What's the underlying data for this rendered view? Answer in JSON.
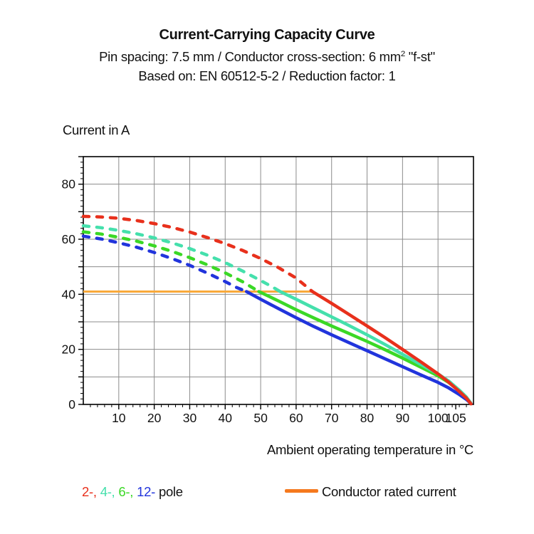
{
  "header": {
    "title": "Current-Carrying Capacity Curve",
    "subtitle_pre": "Pin spacing: 7.5 mm / Conductor cross-section: 6 mm",
    "subtitle_sup": "2",
    "subtitle_post": " \"f-st\"",
    "subtitle2": "Based on: EN 60512-5-2 / Reduction factor: 1"
  },
  "legend": {
    "poles": [
      {
        "text": "2-,",
        "color": "#E8301C"
      },
      {
        "text": "4-,",
        "color": "#45E0AC"
      },
      {
        "text": "6-,",
        "color": "#3BD826"
      },
      {
        "text": "12-",
        "color": "#2134DC"
      }
    ],
    "poles_suffix": "pole",
    "rated_label": "Conductor rated current",
    "rated_swatch_color": "#F5791E"
  },
  "chart_data": {
    "type": "line",
    "title": "Current-Carrying Capacity Curve",
    "xlabel": "Ambient operating temperature in °C",
    "ylabel": "Current in A",
    "xlim": [
      0,
      110
    ],
    "ylim": [
      0,
      90
    ],
    "grid": true,
    "grid_color": "#8C8C8C",
    "x_gridlines": [
      10,
      20,
      30,
      40,
      50,
      60,
      70,
      80,
      90,
      100
    ],
    "y_gridlines": [
      10,
      20,
      30,
      40,
      50,
      60,
      70,
      80
    ],
    "x_major_ticks": [
      10,
      20,
      30,
      40,
      50,
      60,
      70,
      80,
      90,
      100,
      105
    ],
    "y_major_ticks": [
      0,
      20,
      40,
      60,
      80
    ],
    "minor_tick_step": 2,
    "rated_current": {
      "label": "Conductor rated current",
      "value": 41,
      "x_start": 0,
      "x_end": 64.6,
      "line_color": "#F9A93B"
    },
    "series": [
      {
        "name": "12-pole",
        "color": "#2134DC",
        "dashed": [
          [
            0,
            61.1
          ],
          [
            5,
            60.1
          ],
          [
            10,
            58.7
          ],
          [
            15,
            57.1
          ],
          [
            20,
            55.2
          ],
          [
            25,
            53.0
          ],
          [
            30,
            50.5
          ],
          [
            35,
            47.7
          ],
          [
            40,
            44.6
          ],
          [
            43,
            42.6
          ],
          [
            46,
            41.0
          ]
        ],
        "solid": [
          [
            46,
            41.0
          ],
          [
            50,
            38.2
          ],
          [
            55,
            34.8
          ],
          [
            60,
            31.5
          ],
          [
            65,
            28.3
          ],
          [
            70,
            25.3
          ],
          [
            75,
            22.4
          ],
          [
            80,
            19.5
          ],
          [
            85,
            16.6
          ],
          [
            90,
            13.7
          ],
          [
            95,
            10.8
          ],
          [
            100,
            8.0
          ],
          [
            103,
            6.0
          ],
          [
            106,
            3.6
          ],
          [
            108,
            1.8
          ],
          [
            109.3,
            0.3
          ]
        ]
      },
      {
        "name": "6-pole",
        "color": "#3BD826",
        "dashed": [
          [
            0,
            62.7
          ],
          [
            5,
            61.9
          ],
          [
            10,
            60.7
          ],
          [
            15,
            59.3
          ],
          [
            20,
            57.6
          ],
          [
            25,
            55.6
          ],
          [
            30,
            53.3
          ],
          [
            35,
            50.7
          ],
          [
            40,
            47.8
          ],
          [
            45,
            44.5
          ],
          [
            49.5,
            41.0
          ]
        ],
        "solid": [
          [
            49.5,
            41.0
          ],
          [
            55,
            37.6
          ],
          [
            60,
            34.4
          ],
          [
            65,
            31.4
          ],
          [
            70,
            28.5
          ],
          [
            75,
            25.7
          ],
          [
            80,
            22.9
          ],
          [
            85,
            19.9
          ],
          [
            90,
            16.8
          ],
          [
            95,
            13.6
          ],
          [
            100,
            10.4
          ],
          [
            103,
            8.0
          ],
          [
            106,
            4.9
          ],
          [
            108,
            2.4
          ],
          [
            109.2,
            0.5
          ]
        ]
      },
      {
        "name": "4-pole",
        "color": "#45E0AC",
        "dashed": [
          [
            0,
            64.9
          ],
          [
            5,
            64.2
          ],
          [
            10,
            63.2
          ],
          [
            15,
            62.0
          ],
          [
            20,
            60.5
          ],
          [
            25,
            58.7
          ],
          [
            30,
            56.6
          ],
          [
            35,
            54.2
          ],
          [
            40,
            51.5
          ],
          [
            45,
            48.4
          ],
          [
            50,
            45.0
          ],
          [
            53,
            42.9
          ],
          [
            55.5,
            41.0
          ]
        ],
        "solid": [
          [
            55.5,
            41.0
          ],
          [
            60,
            38.2
          ],
          [
            65,
            35.0
          ],
          [
            70,
            31.8
          ],
          [
            75,
            28.6
          ],
          [
            80,
            25.3
          ],
          [
            85,
            21.8
          ],
          [
            90,
            18.2
          ],
          [
            95,
            14.6
          ],
          [
            100,
            11.1
          ],
          [
            103,
            8.5
          ],
          [
            106,
            5.2
          ],
          [
            108,
            2.7
          ],
          [
            109.2,
            0.6
          ]
        ]
      },
      {
        "name": "2-pole",
        "color": "#E8301C",
        "dashed": [
          [
            0,
            68.3
          ],
          [
            5,
            68.1
          ],
          [
            10,
            67.6
          ],
          [
            15,
            66.8
          ],
          [
            20,
            65.7
          ],
          [
            25,
            64.3
          ],
          [
            30,
            62.6
          ],
          [
            35,
            60.6
          ],
          [
            40,
            58.4
          ],
          [
            45,
            55.9
          ],
          [
            50,
            53.0
          ],
          [
            55,
            49.7
          ],
          [
            60,
            45.9
          ],
          [
            64.6,
            41.0
          ]
        ],
        "solid": [
          [
            64.6,
            41.0
          ],
          [
            70,
            36.7
          ],
          [
            75,
            32.6
          ],
          [
            80,
            28.5
          ],
          [
            85,
            24.3
          ],
          [
            90,
            20.0
          ],
          [
            95,
            15.6
          ],
          [
            100,
            11.1
          ],
          [
            103,
            8.1
          ],
          [
            106,
            4.7
          ],
          [
            108,
            2.3
          ],
          [
            109.3,
            0.2
          ]
        ]
      }
    ]
  }
}
